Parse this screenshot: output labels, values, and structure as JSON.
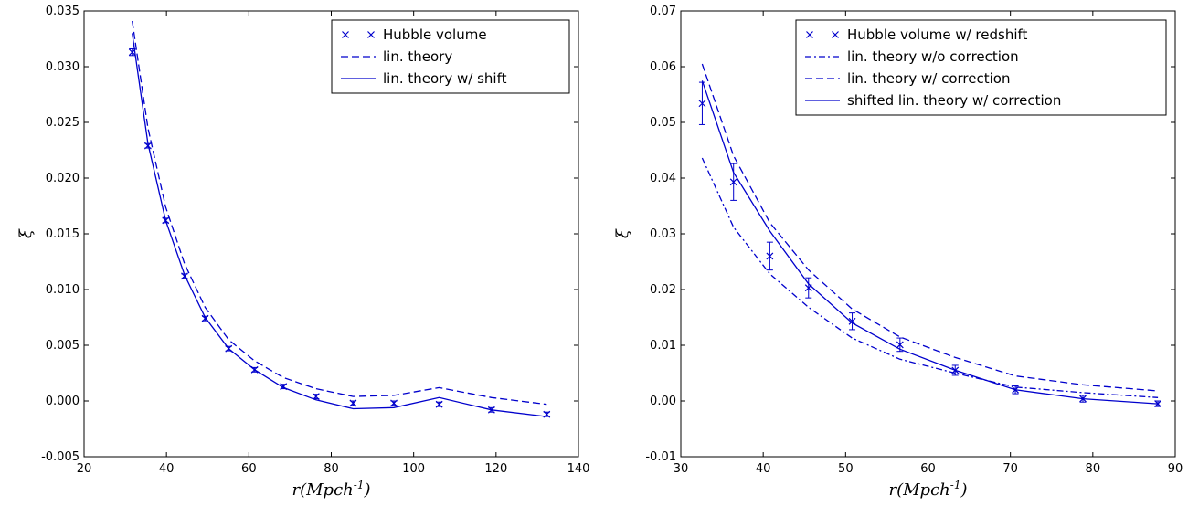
{
  "chart_data": [
    {
      "type": "line",
      "xlabel": "r(Mpch^{-1})",
      "ylabel": "ξ",
      "xlim": [
        20,
        140
      ],
      "ylim": [
        -0.005,
        0.035
      ],
      "xticks": [
        20,
        40,
        60,
        80,
        100,
        120,
        140
      ],
      "xtick_labels": [
        "20",
        "40",
        "60",
        "80",
        "100",
        "120",
        "140"
      ],
      "yticks": [
        -0.005,
        0.0,
        0.005,
        0.01,
        0.015,
        0.02,
        0.025,
        0.03,
        0.035
      ],
      "ytick_labels": [
        "-0.005",
        "0.000",
        "0.005",
        "0.010",
        "0.015",
        "0.020",
        "0.025",
        "0.030",
        "0.035"
      ],
      "legend_position": "top-right",
      "color": "#0000cc",
      "series": [
        {
          "name": "Hubble volume",
          "style": "markers-x",
          "x": [
            31.7,
            35.5,
            39.8,
            44.4,
            49.4,
            55.1,
            61.4,
            68.4,
            76.3,
            85.3,
            95.2,
            106.2,
            118.9,
            132.3
          ],
          "y": [
            0.0313,
            0.0229,
            0.0162,
            0.0112,
            0.0074,
            0.0047,
            0.0028,
            0.0013,
            0.0004,
            -0.0002,
            -0.0002,
            -0.0003,
            -0.0008,
            -0.0012
          ],
          "err": [
            0.0003,
            0.0002,
            0.0002,
            0.0002,
            0.0002,
            0.0002,
            0.0002,
            0.0002,
            0.0002,
            0.0002,
            0.0002,
            0.0002,
            0.0002,
            0.0002
          ]
        },
        {
          "name": "lin. theory",
          "style": "dashed",
          "x": [
            31.7,
            35.5,
            39.8,
            44.4,
            49.4,
            55.1,
            61.4,
            68.4,
            76.3,
            85.3,
            95.2,
            106.2,
            118.9,
            132.3
          ],
          "y": [
            0.0341,
            0.0245,
            0.0174,
            0.0123,
            0.0084,
            0.0055,
            0.0036,
            0.0021,
            0.0011,
            0.0004,
            0.0005,
            0.0012,
            0.0003,
            -0.0003
          ]
        },
        {
          "name": "lin. theory w/ shift",
          "style": "solid",
          "x": [
            31.7,
            35.5,
            39.8,
            44.4,
            49.4,
            55.1,
            61.4,
            68.4,
            76.3,
            85.3,
            95.2,
            106.2,
            118.9,
            132.3
          ],
          "y": [
            0.033,
            0.0231,
            0.0162,
            0.0113,
            0.0075,
            0.0047,
            0.0028,
            0.0012,
            0.0001,
            -0.0007,
            -0.0006,
            0.0003,
            -0.0008,
            -0.0014
          ]
        }
      ]
    },
    {
      "type": "line",
      "xlabel": "r(Mpch^{-1})",
      "ylabel": "ξ",
      "xlim": [
        30,
        90
      ],
      "ylim": [
        -0.01,
        0.07
      ],
      "xticks": [
        30,
        40,
        50,
        60,
        70,
        80,
        90
      ],
      "xtick_labels": [
        "30",
        "40",
        "50",
        "60",
        "70",
        "80",
        "90"
      ],
      "yticks": [
        -0.01,
        0.0,
        0.01,
        0.02,
        0.03,
        0.04,
        0.05,
        0.06,
        0.07
      ],
      "ytick_labels": [
        "-0.01",
        "0.00",
        "0.01",
        "0.02",
        "0.03",
        "0.04",
        "0.05",
        "0.06",
        "0.07"
      ],
      "legend_position": "top-right",
      "color": "#0000cc",
      "series": [
        {
          "name": "Hubble volume w/ redshift",
          "style": "markers-x",
          "x": [
            32.6,
            36.4,
            40.8,
            45.5,
            50.8,
            56.6,
            63.3,
            70.6,
            78.8,
            87.9
          ],
          "y": [
            0.0534,
            0.0393,
            0.026,
            0.0203,
            0.0143,
            0.0101,
            0.0055,
            0.002,
            0.0004,
            -0.0005
          ],
          "err": [
            0.0038,
            0.0033,
            0.0025,
            0.0018,
            0.0015,
            0.0012,
            0.0009,
            0.0007,
            0.0006,
            0.0005
          ]
        },
        {
          "name": "lin. theory w/o correction",
          "style": "dashdot",
          "x": [
            32.6,
            36.4,
            40.8,
            45.5,
            50.8,
            56.6,
            63.3,
            70.6,
            78.8,
            87.9
          ],
          "y": [
            0.0436,
            0.0312,
            0.0228,
            0.0168,
            0.0113,
            0.0075,
            0.005,
            0.0025,
            0.0015,
            0.0006
          ]
        },
        {
          "name": "lin. theory w/ correction",
          "style": "dashed",
          "x": [
            32.6,
            36.4,
            40.8,
            45.5,
            50.8,
            56.6,
            63.3,
            70.6,
            78.8,
            87.9
          ],
          "y": [
            0.0605,
            0.044,
            0.032,
            0.0235,
            0.0165,
            0.0115,
            0.0078,
            0.0045,
            0.0029,
            0.0018
          ]
        },
        {
          "name": "shifted lin. theory w/ correction",
          "style": "solid",
          "x": [
            32.6,
            36.4,
            40.8,
            45.5,
            50.8,
            56.6,
            63.3,
            70.6,
            78.8,
            87.9
          ],
          "y": [
            0.0575,
            0.041,
            0.0305,
            0.021,
            0.014,
            0.0093,
            0.0055,
            0.002,
            0.0004,
            -0.0005
          ]
        }
      ]
    }
  ]
}
